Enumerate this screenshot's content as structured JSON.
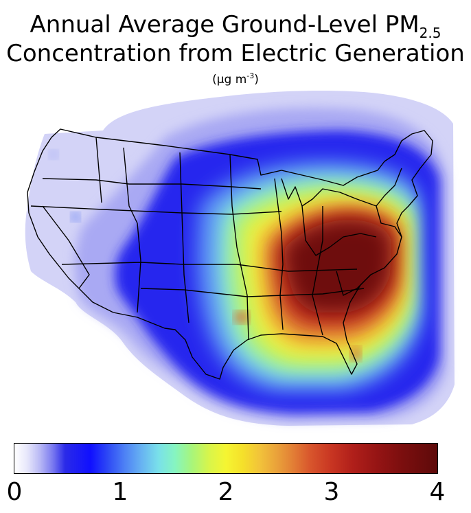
{
  "title": {
    "line1_prefix": "Annual Average Ground-Level PM",
    "line1_subscript": "2.5",
    "line2": "Concentration from Electric Generation",
    "units_prefix": "(µg m",
    "units_superscript": "-3",
    "units_suffix": ")"
  },
  "colorbar": {
    "min": 0,
    "max": 4,
    "tick_labels": [
      "0",
      "1",
      "2",
      "3",
      "4"
    ],
    "colors": {
      "low": "#ffffff",
      "light_blue": "#b9b9f5",
      "blue": "#1010ff",
      "cyan": "#79e0ea",
      "green": "#a8f57a",
      "yellow": "#f5f532",
      "orange": "#eaa23a",
      "red": "#c83522",
      "dark_red": "#5e0a0a"
    }
  },
  "map": {
    "region": "Contiguous United States",
    "quantity": "PM2.5 concentration",
    "peak_region": "Ohio River Valley / Mid-Atlantic",
    "peak_value": 4
  }
}
